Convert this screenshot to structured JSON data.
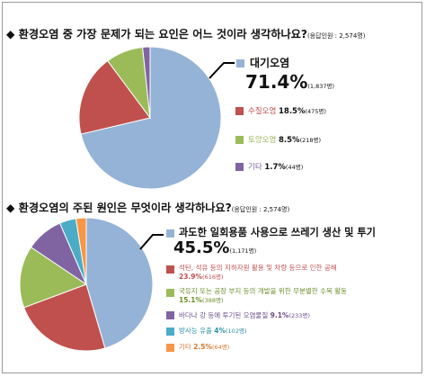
{
  "colors": {
    "blue": "#95B3D7",
    "red": "#C0504D",
    "green": "#9BBB59",
    "purple": "#8064A2",
    "teal": "#4BACC6",
    "orange": "#F79646"
  },
  "chart_data": [
    {
      "type": "pie",
      "title": "◆ 환경오염 중 가장 문제가 되는 요인은 어느 것이라 생각하나요?",
      "respondents": "(응답인원 : 2,574명)",
      "slices": [
        {
          "label": "대기오염",
          "percent": 71.4,
          "percent_text": "71.4%",
          "count_text": "(1,837명)",
          "color": "#95B3D7"
        },
        {
          "label": "수질오염",
          "percent": 18.5,
          "percent_text": "18.5%",
          "count_text": "(475명)",
          "color": "#C0504D"
        },
        {
          "label": "토양오염",
          "percent": 8.5,
          "percent_text": "8.5%",
          "count_text": "(218명)",
          "color": "#9BBB59"
        },
        {
          "label": "기타",
          "percent": 1.7,
          "percent_text": "1.7%",
          "count_text": "(44명)",
          "color": "#8064A2"
        }
      ]
    },
    {
      "type": "pie",
      "title": "◆ 환경오염의 주된 원인은 무엇이라 생각하나요?",
      "respondents": "(응답인원 : 2,574명)",
      "slices": [
        {
          "label": "과도한 일회용품 사용으로 쓰레기 생산 및 투기",
          "percent": 45.5,
          "percent_text": "45.5%",
          "count_text": "(1,171명)",
          "color": "#95B3D7"
        },
        {
          "label": "석탄, 석유 등의 지하자원 활용 및 차량 등으로 인한 공해",
          "percent": 23.9,
          "percent_text": "23.9%",
          "count_text": "(616명)",
          "color": "#C0504D"
        },
        {
          "label": "국유지 또는 공장 부지 등의 개발을 위한 무분별한 수목 활동",
          "percent": 15.1,
          "percent_text": "15.1%",
          "count_text": "(388명)",
          "color": "#9BBB59"
        },
        {
          "label": "바다나 강 등에 투기된 오염물질",
          "percent": 9.1,
          "percent_text": "9.1%",
          "count_text": "(233명)",
          "color": "#8064A2"
        },
        {
          "label": "방사능 유출",
          "percent": 4,
          "percent_text": "4%",
          "count_text": "(102명)",
          "color": "#4BACC6"
        },
        {
          "label": "기타",
          "percent": 2.5,
          "percent_text": "2.5%",
          "count_text": "(64명)",
          "color": "#F79646"
        }
      ]
    }
  ]
}
